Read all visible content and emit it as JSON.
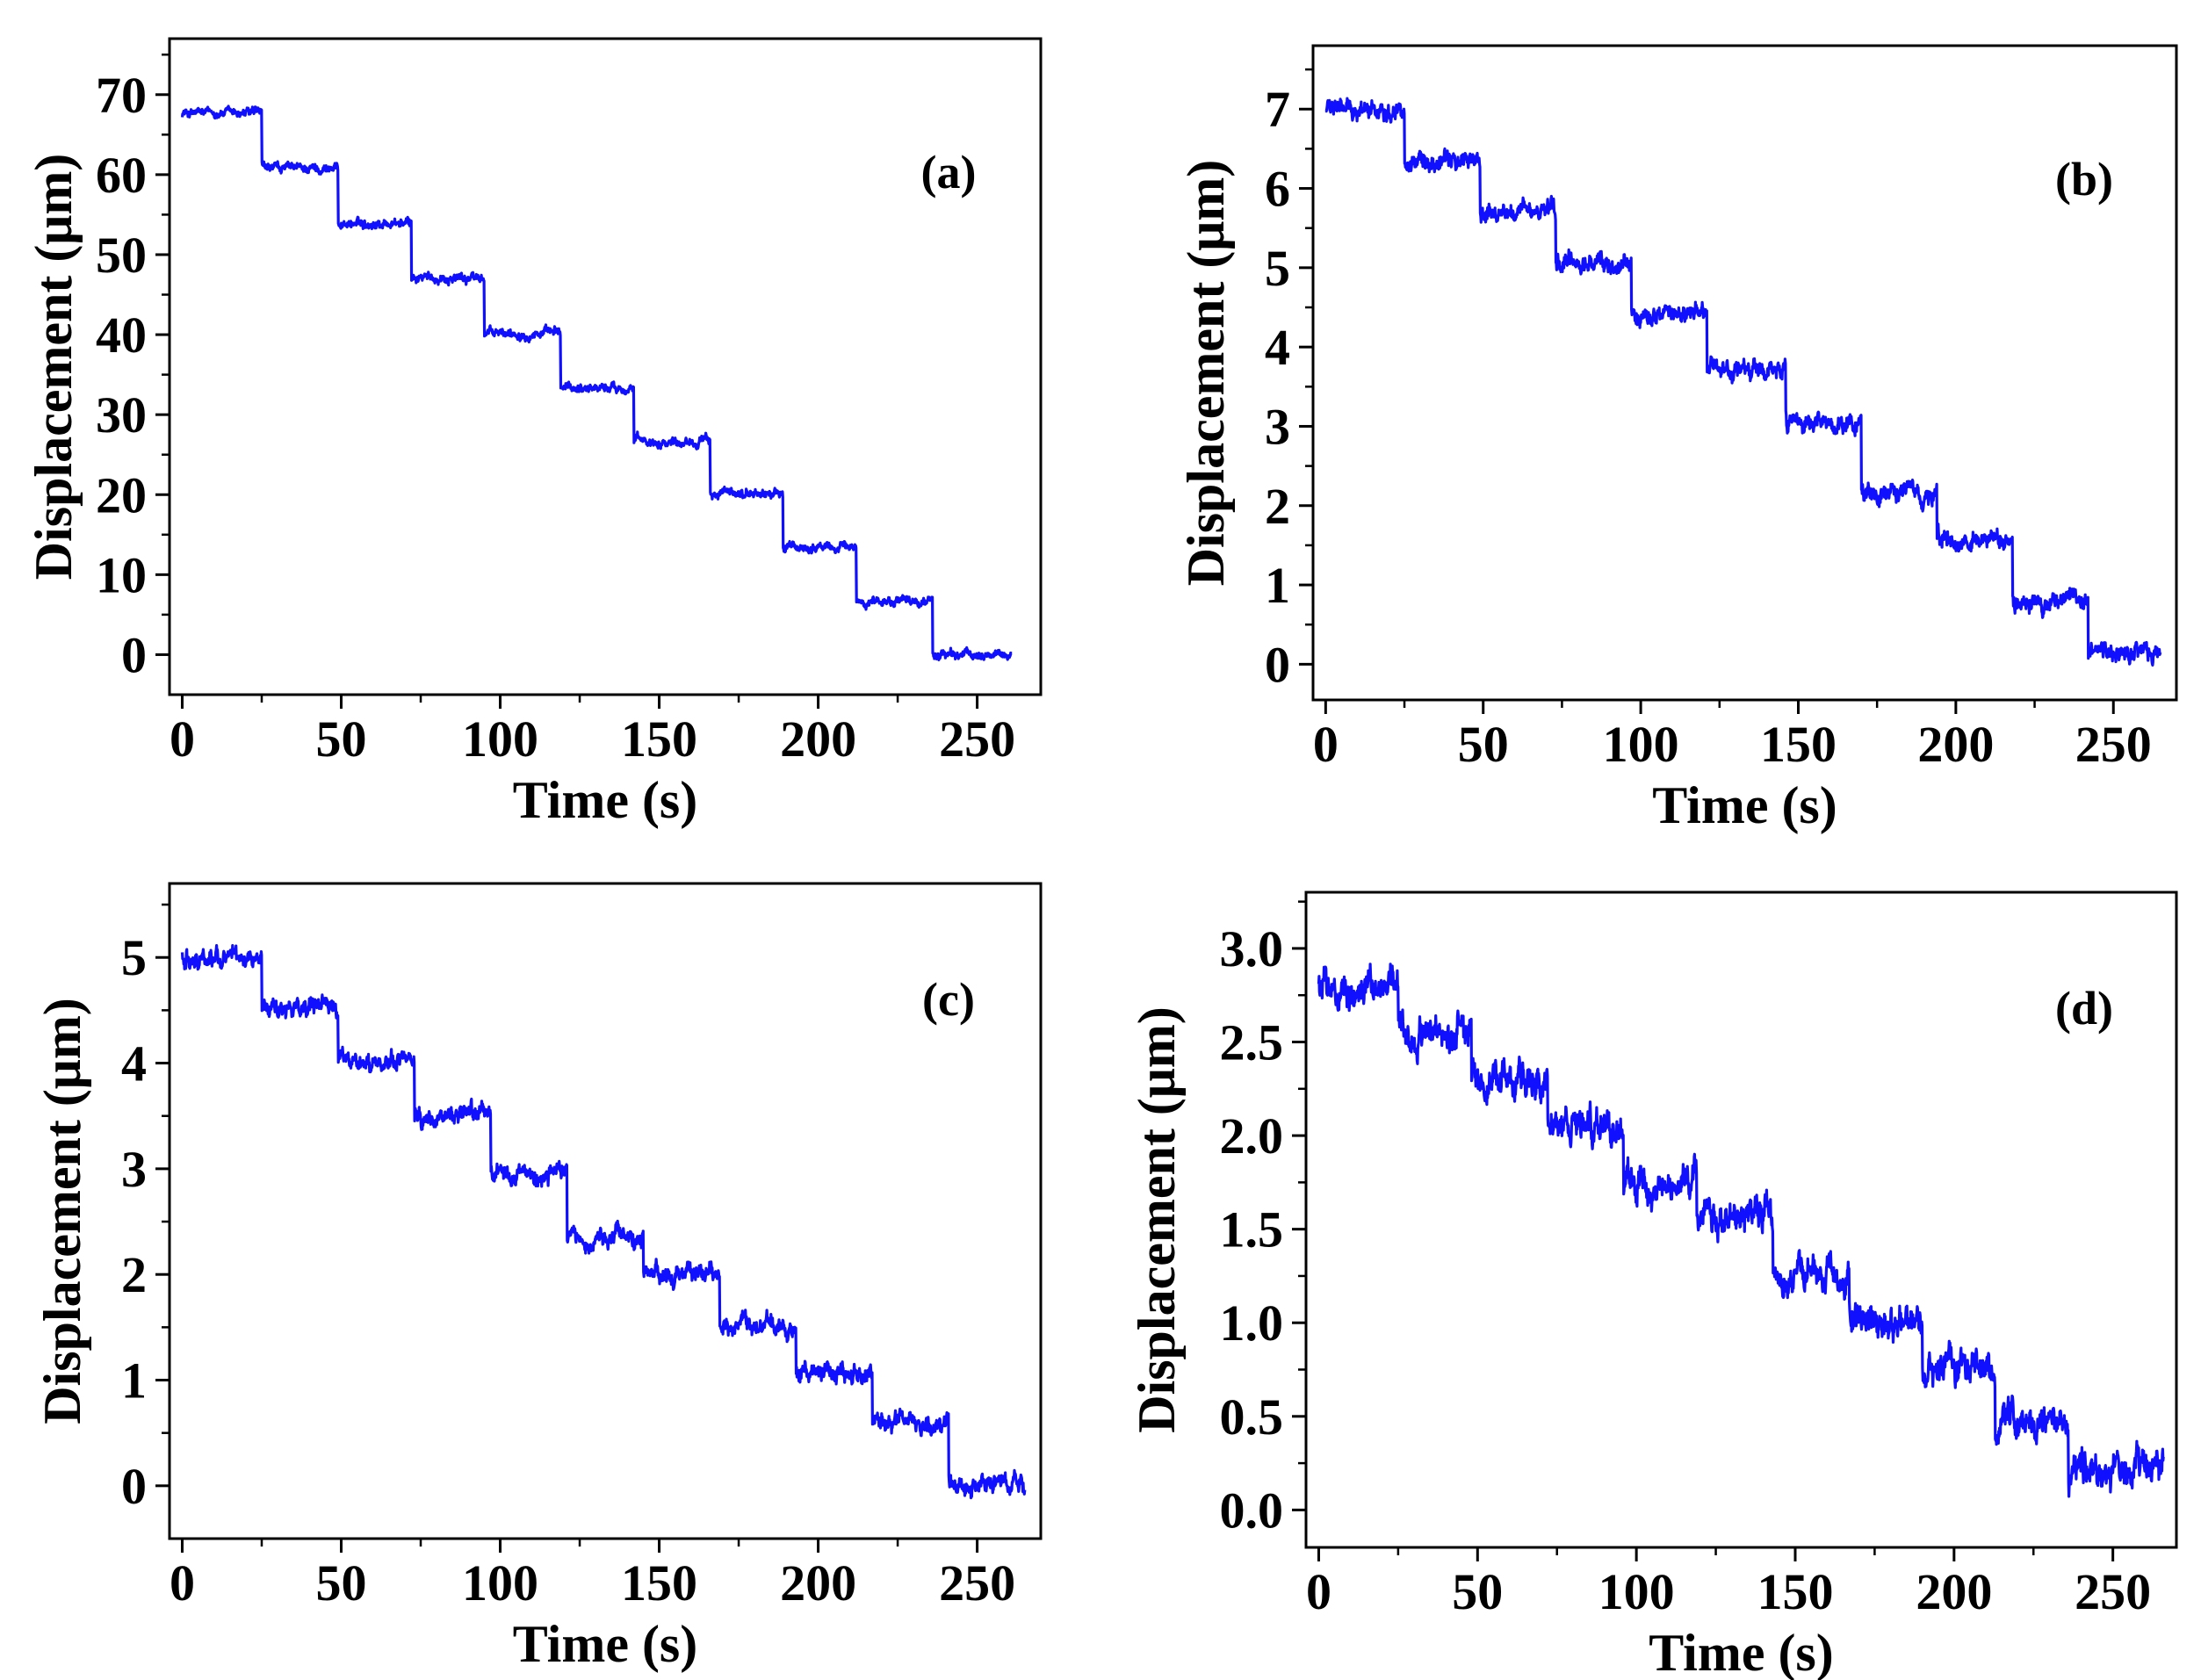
{
  "figure": {
    "line_color": "#1010ff",
    "axis_color": "#000000"
  },
  "chart_data": [
    {
      "id": "a",
      "type": "line",
      "panel_label": "(a)",
      "xlabel": "Time (s)",
      "ylabel": "Displacement (μm)",
      "xlim": [
        -4,
        270
      ],
      "ylim": [
        -5,
        77
      ],
      "xticks": [
        0,
        50,
        100,
        150,
        200,
        250
      ],
      "xtick_labels": [
        "0",
        "50",
        "100",
        "150",
        "200",
        "250"
      ],
      "yticks": [
        0,
        10,
        20,
        30,
        40,
        50,
        60,
        70
      ],
      "ytick_labels": [
        "0",
        "10",
        "20",
        "30",
        "40",
        "50",
        "60",
        "70"
      ],
      "step_times": [
        0,
        25,
        49,
        72,
        95,
        119,
        142,
        166,
        189,
        212,
        236,
        261
      ],
      "step_levels": [
        67.7,
        60.8,
        53.9,
        47.1,
        40.2,
        33.4,
        26.7,
        20.1,
        13.4,
        6.7,
        0.0
      ],
      "noise_amplitude": 0.6
    },
    {
      "id": "b",
      "type": "line",
      "panel_label": "(b)",
      "xlabel": "Time (s)",
      "ylabel": "Displacement (μm)",
      "xlim": [
        -4,
        270
      ],
      "ylim": [
        -0.45,
        7.8
      ],
      "xticks": [
        0,
        50,
        100,
        150,
        200,
        250
      ],
      "xtick_labels": [
        "0",
        "50",
        "100",
        "150",
        "200",
        "250"
      ],
      "yticks": [
        0,
        1,
        2,
        3,
        4,
        5,
        6,
        7
      ],
      "ytick_labels": [
        "0",
        "1",
        "2",
        "3",
        "4",
        "5",
        "6",
        "7"
      ],
      "step_times": [
        0,
        25,
        49,
        73,
        97,
        121,
        146,
        170,
        194,
        218,
        242,
        265
      ],
      "step_levels": [
        7.0,
        6.35,
        5.7,
        5.05,
        4.4,
        3.7,
        3.0,
        2.15,
        1.55,
        0.8,
        0.15
      ],
      "noise_amplitude": 0.12
    },
    {
      "id": "c",
      "type": "line",
      "panel_label": "(c)",
      "xlabel": "Time (s)",
      "ylabel": "Displacement (μm)",
      "xlim": [
        -4,
        270
      ],
      "ylim": [
        -0.5,
        5.7
      ],
      "xticks": [
        0,
        50,
        100,
        150,
        200,
        250
      ],
      "xtick_labels": [
        "0",
        "50",
        "100",
        "150",
        "200",
        "250"
      ],
      "yticks": [
        0,
        1,
        2,
        3,
        4,
        5
      ],
      "ytick_labels": [
        "0",
        "1",
        "2",
        "3",
        "4",
        "5"
      ],
      "step_times": [
        0,
        25,
        49,
        73,
        97,
        121,
        145,
        169,
        193,
        217,
        241,
        265
      ],
      "step_levels": [
        5.0,
        4.52,
        4.02,
        3.5,
        2.95,
        2.35,
        2.0,
        1.5,
        1.08,
        0.6,
        0.0
      ],
      "noise_amplitude": 0.09
    },
    {
      "id": "d",
      "type": "line",
      "panel_label": "(d)",
      "xlabel": "Time (s)",
      "ylabel": "Displacement (μm)",
      "xlim": [
        -4,
        270
      ],
      "ylim": [
        -0.2,
        3.3
      ],
      "xticks": [
        0,
        50,
        100,
        150,
        200,
        250
      ],
      "xtick_labels": [
        "0",
        "50",
        "100",
        "150",
        "200",
        "250"
      ],
      "yticks": [
        0.0,
        0.5,
        1.0,
        1.5,
        2.0,
        2.5,
        3.0
      ],
      "ytick_labels": [
        "0.0",
        "0.5",
        "1.0",
        "1.5",
        "2.0",
        "2.5",
        "3.0"
      ],
      "step_times": [
        0,
        25,
        48,
        72,
        96,
        119,
        143,
        167,
        190,
        213,
        236,
        266
      ],
      "step_levels": [
        2.78,
        2.55,
        2.28,
        2.05,
        1.75,
        1.55,
        1.25,
        1.0,
        0.75,
        0.48,
        0.22
      ],
      "noise_amplitude": 0.09
    }
  ]
}
